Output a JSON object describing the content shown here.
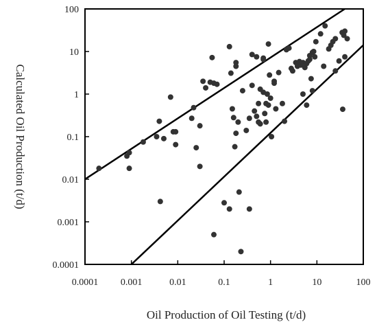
{
  "chart_data": {
    "type": "scatter",
    "title": "",
    "xlabel": "Oil Production of Oil Testing (t/d)",
    "ylabel": "Calculated Oil Production (t/d)",
    "xscale": "log",
    "yscale": "log",
    "xlim": [
      0.0001,
      100
    ],
    "ylim": [
      0.0001,
      100
    ],
    "x_ticks": [
      "0.0001",
      "0.001",
      "0.01",
      "0.1",
      "1",
      "10",
      "100"
    ],
    "y_ticks": [
      "0.0001",
      "0.001",
      "0.01",
      "0.1",
      "1",
      "10",
      "100"
    ],
    "grid": false,
    "legend": "none",
    "colors": {
      "points": "#333333",
      "lines": "#000000",
      "axes": "#000000"
    },
    "boundary_lines": [
      {
        "points": [
          [
            0.0001,
            0.01
          ],
          [
            39.8,
            100
          ]
        ]
      },
      {
        "points": [
          [
            0.001,
            0.0001
          ],
          [
            100,
            14.1
          ]
        ]
      }
    ],
    "points": [
      [
        0.0002,
        0.018
      ],
      [
        0.0009,
        0.018
      ],
      [
        0.0008,
        0.035
      ],
      [
        0.0009,
        0.042
      ],
      [
        0.0018,
        0.075
      ],
      [
        0.0035,
        0.1
      ],
      [
        0.004,
        0.23
      ],
      [
        0.005,
        0.09
      ],
      [
        0.0042,
        0.003
      ],
      [
        0.007,
        0.85
      ],
      [
        0.008,
        0.13
      ],
      [
        0.009,
        0.13
      ],
      [
        0.009,
        0.065
      ],
      [
        0.02,
        0.27
      ],
      [
        0.022,
        0.48
      ],
      [
        0.025,
        0.055
      ],
      [
        0.03,
        0.18
      ],
      [
        0.03,
        0.02
      ],
      [
        0.035,
        2.0
      ],
      [
        0.04,
        1.4
      ],
      [
        0.05,
        1.9
      ],
      [
        0.055,
        7.2
      ],
      [
        0.06,
        1.8
      ],
      [
        0.07,
        1.7
      ],
      [
        0.06,
        0.0005
      ],
      [
        0.1,
        0.0028
      ],
      [
        0.13,
        0.002
      ],
      [
        0.13,
        13.0
      ],
      [
        0.14,
        3.1
      ],
      [
        0.15,
        0.45
      ],
      [
        0.16,
        0.28
      ],
      [
        0.18,
        4.5
      ],
      [
        0.18,
        5.5
      ],
      [
        0.18,
        0.12
      ],
      [
        0.17,
        0.058
      ],
      [
        0.2,
        0.22
      ],
      [
        0.21,
        0.005
      ],
      [
        0.23,
        0.0002
      ],
      [
        0.25,
        1.2
      ],
      [
        0.3,
        0.14
      ],
      [
        0.35,
        0.27
      ],
      [
        0.35,
        0.002
      ],
      [
        0.4,
        8.5
      ],
      [
        0.4,
        1.6
      ],
      [
        0.45,
        0.4
      ],
      [
        0.5,
        7.5
      ],
      [
        0.5,
        0.3
      ],
      [
        0.55,
        0.6
      ],
      [
        0.55,
        0.22
      ],
      [
        0.6,
        0.2
      ],
      [
        0.6,
        1.3
      ],
      [
        0.7,
        7.0
      ],
      [
        0.7,
        6.5
      ],
      [
        0.7,
        1.1
      ],
      [
        0.75,
        0.35
      ],
      [
        0.8,
        0.6
      ],
      [
        0.8,
        0.22
      ],
      [
        0.85,
        1.0
      ],
      [
        0.9,
        0.55
      ],
      [
        0.9,
        15.0
      ],
      [
        0.95,
        2.8
      ],
      [
        1.0,
        0.8
      ],
      [
        1.05,
        0.1
      ],
      [
        1.2,
        1.8
      ],
      [
        1.2,
        2.0
      ],
      [
        1.3,
        0.45
      ],
      [
        1.5,
        3.2
      ],
      [
        1.8,
        0.6
      ],
      [
        2.0,
        0.23
      ],
      [
        2.2,
        11.0
      ],
      [
        2.5,
        12.0
      ],
      [
        2.8,
        4.0
      ],
      [
        3.0,
        3.5
      ],
      [
        3.5,
        5.5
      ],
      [
        3.8,
        4.5
      ],
      [
        4.0,
        5.0
      ],
      [
        4.2,
        5.8
      ],
      [
        4.5,
        4.8
      ],
      [
        5.0,
        5.5
      ],
      [
        5.0,
        1.0
      ],
      [
        5.5,
        4.2
      ],
      [
        6.0,
        5.2
      ],
      [
        6.0,
        0.55
      ],
      [
        6.5,
        6.0
      ],
      [
        7.0,
        8.0
      ],
      [
        7.0,
        6.5
      ],
      [
        7.5,
        2.3
      ],
      [
        8.0,
        9.5
      ],
      [
        8.0,
        1.2
      ],
      [
        8.5,
        10.0
      ],
      [
        9.0,
        7.5
      ],
      [
        9.5,
        17.0
      ],
      [
        12.0,
        26.0
      ],
      [
        14.0,
        4.5
      ],
      [
        15.0,
        40.0
      ],
      [
        18.0,
        11.5
      ],
      [
        20.0,
        14.0
      ],
      [
        22.0,
        17.0
      ],
      [
        25.0,
        20.0
      ],
      [
        25.0,
        3.5
      ],
      [
        30.0,
        6.0
      ],
      [
        35.0,
        28.0
      ],
      [
        38.0,
        24.0
      ],
      [
        40.0,
        30.0
      ],
      [
        45.0,
        20.0
      ],
      [
        40.0,
        7.5
      ],
      [
        36.0,
        0.44
      ]
    ]
  }
}
